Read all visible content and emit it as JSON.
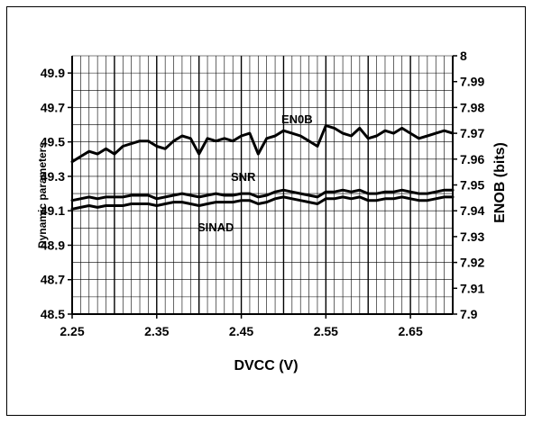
{
  "chart_data": {
    "type": "line",
    "xlabel": "DVCC (V)",
    "ylabel_left": "Dynamic parameters",
    "ylabel_right": "ENOB (bits)",
    "xlim": [
      2.25,
      2.7
    ],
    "xticks": [
      "2.25",
      "2.35",
      "2.45",
      "2.55",
      "2.65"
    ],
    "ylim_left": [
      48.5,
      50.0
    ],
    "yticks_left": [
      "48.5",
      "48.7",
      "48.9",
      "49.1",
      "49.3",
      "49.5",
      "49.7",
      "49.9"
    ],
    "ylim_right": [
      7.9,
      8.0
    ],
    "yticks_right": [
      "7.9",
      "7.91",
      "7.92",
      "7.93",
      "7.94",
      "7.95",
      "7.96",
      "7.97",
      "7.98",
      "7.99",
      "8"
    ],
    "grid": true,
    "x": [
      2.25,
      2.26,
      2.27,
      2.28,
      2.29,
      2.3,
      2.31,
      2.32,
      2.33,
      2.34,
      2.35,
      2.36,
      2.37,
      2.38,
      2.39,
      2.4,
      2.41,
      2.42,
      2.43,
      2.44,
      2.45,
      2.46,
      2.47,
      2.48,
      2.49,
      2.5,
      2.51,
      2.52,
      2.53,
      2.54,
      2.55,
      2.56,
      2.57,
      2.58,
      2.59,
      2.6,
      2.61,
      2.62,
      2.63,
      2.64,
      2.65,
      2.66,
      2.67,
      2.68,
      2.69,
      2.7
    ],
    "series": [
      {
        "name": "ENOB",
        "axis": "right",
        "values": [
          7.959,
          7.961,
          7.963,
          7.962,
          7.964,
          7.962,
          7.965,
          7.966,
          7.967,
          7.967,
          7.965,
          7.964,
          7.967,
          7.969,
          7.968,
          7.962,
          7.968,
          7.967,
          7.968,
          7.967,
          7.969,
          7.97,
          7.962,
          7.968,
          7.969,
          7.971,
          7.97,
          7.969,
          7.967,
          7.965,
          7.973,
          7.972,
          7.97,
          7.969,
          7.972,
          7.968,
          7.969,
          7.971,
          7.97,
          7.972,
          7.97,
          7.968,
          7.969,
          7.97,
          7.971,
          7.97
        ]
      },
      {
        "name": "SNR",
        "axis": "left",
        "values": [
          49.16,
          49.17,
          49.18,
          49.17,
          49.18,
          49.18,
          49.18,
          49.19,
          49.19,
          49.19,
          49.17,
          49.18,
          49.19,
          49.2,
          49.19,
          49.18,
          49.19,
          49.2,
          49.19,
          49.19,
          49.2,
          49.2,
          49.18,
          49.19,
          49.21,
          49.22,
          49.21,
          49.2,
          49.19,
          49.18,
          49.21,
          49.21,
          49.22,
          49.21,
          49.22,
          49.2,
          49.2,
          49.21,
          49.21,
          49.22,
          49.21,
          49.2,
          49.2,
          49.21,
          49.22,
          49.22
        ]
      },
      {
        "name": "SINAD",
        "axis": "left",
        "values": [
          49.11,
          49.12,
          49.13,
          49.12,
          49.13,
          49.13,
          49.13,
          49.14,
          49.14,
          49.14,
          49.13,
          49.14,
          49.15,
          49.15,
          49.14,
          49.13,
          49.14,
          49.15,
          49.15,
          49.15,
          49.16,
          49.16,
          49.14,
          49.15,
          49.17,
          49.18,
          49.17,
          49.16,
          49.15,
          49.14,
          49.17,
          49.17,
          49.18,
          49.17,
          49.18,
          49.16,
          49.16,
          49.17,
          49.17,
          49.18,
          49.17,
          49.16,
          49.16,
          49.17,
          49.18,
          49.18
        ]
      }
    ],
    "annotations": [
      "EN0B",
      "SNR",
      "SINAD"
    ]
  }
}
